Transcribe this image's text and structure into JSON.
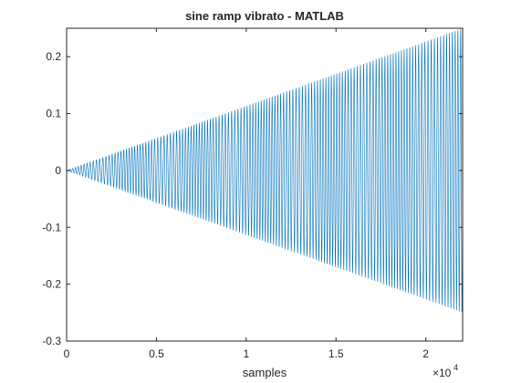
{
  "chart_data": {
    "type": "line",
    "title": "sine ramp vibrato - MATLAB",
    "xlabel": "samples",
    "ylabel": "",
    "x_exponent_base": "×10",
    "x_exponent_power": "4",
    "xlim": [
      0,
      22050
    ],
    "ylim": [
      -0.3,
      0.25
    ],
    "xticks": [
      0,
      5000,
      10000,
      15000,
      20000
    ],
    "xtick_labels": [
      "0",
      "0.5",
      "1",
      "1.5",
      "2"
    ],
    "yticks": [
      0.2,
      0.1,
      0,
      -0.1,
      -0.2,
      -0.3
    ],
    "ytick_labels": [
      "0.2",
      "0.1",
      "0",
      "-0.1",
      "-0.2",
      "-0.3"
    ],
    "grid": false,
    "series": [
      {
        "signal": "linearly ramped sine with vibrato",
        "color": "#0072bd",
        "amplitude_envelope": {
          "x": [
            0,
            22050
          ],
          "y": [
            0,
            0.25
          ]
        },
        "sample_count": 22050
      }
    ]
  }
}
